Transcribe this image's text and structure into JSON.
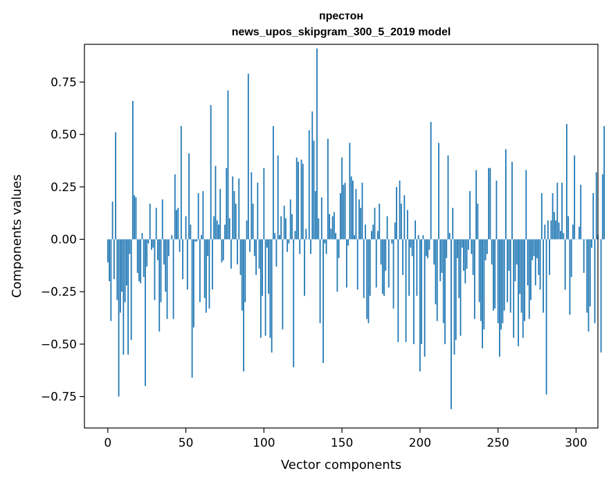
{
  "chart_data": {
    "type": "bar",
    "title": "престон",
    "subtitle": "news_upos_skipgram_300_5_2019 model",
    "xlabel": "Vector components",
    "ylabel": "Components values",
    "xlim": [
      -15,
      314
    ],
    "ylim": [
      -0.9,
      0.93
    ],
    "xticks": [
      0,
      50,
      100,
      150,
      200,
      250,
      300
    ],
    "yticks": [
      -0.75,
      -0.5,
      -0.25,
      0.0,
      0.25,
      0.5,
      0.75
    ],
    "xtick_labels": [
      "0",
      "50",
      "100",
      "150",
      "200",
      "250",
      "300"
    ],
    "ytick_labels": [
      "−0.75",
      "−0.50",
      "−0.25",
      "0.00",
      "0.25",
      "0.50",
      "0.75"
    ],
    "bar_color": "#1f77b4",
    "values": [
      -0.11,
      -0.2,
      -0.39,
      0.18,
      -0.19,
      0.51,
      -0.29,
      -0.75,
      -0.35,
      -0.25,
      -0.55,
      -0.3,
      -0.22,
      -0.55,
      -0.07,
      -0.48,
      0.66,
      0.21,
      0.2,
      -0.16,
      -0.2,
      -0.21,
      0.03,
      -0.18,
      -0.7,
      -0.13,
      -0.02,
      0.17,
      -0.05,
      -0.04,
      -0.29,
      0.15,
      -0.1,
      -0.44,
      -0.3,
      0.19,
      -0.12,
      -0.25,
      -0.38,
      -0.08,
      0.0,
      0.02,
      -0.38,
      0.31,
      0.14,
      0.15,
      -0.06,
      0.54,
      -0.19,
      0.0,
      0.11,
      -0.24,
      0.41,
      0.07,
      -0.66,
      -0.42,
      -0.01,
      -0.01,
      0.22,
      -0.3,
      0.02,
      0.23,
      -0.28,
      -0.35,
      -0.08,
      -0.33,
      0.64,
      -0.24,
      0.11,
      0.35,
      0.09,
      0.07,
      0.24,
      -0.11,
      -0.1,
      0.07,
      0.34,
      0.71,
      0.1,
      -0.14,
      0.3,
      0.23,
      0.17,
      -0.12,
      0.29,
      -0.17,
      -0.34,
      -0.63,
      -0.3,
      0.09,
      0.79,
      -0.06,
      0.32,
      0.17,
      -0.08,
      -0.17,
      0.27,
      -0.14,
      -0.47,
      -0.27,
      0.34,
      -0.46,
      -0.04,
      -0.26,
      -0.47,
      -0.54,
      0.54,
      0.03,
      -0.13,
      0.4,
      0.02,
      0.11,
      -0.43,
      0.16,
      0.1,
      -0.06,
      -0.02,
      0.19,
      0.12,
      -0.61,
      0.04,
      0.39,
      0.37,
      -0.07,
      0.38,
      0.36,
      -0.27,
      0.05,
      0.0,
      0.52,
      -0.07,
      0.61,
      0.47,
      0.23,
      0.91,
      0.1,
      -0.4,
      0.2,
      -0.59,
      -0.02,
      -0.07,
      0.48,
      0.12,
      0.05,
      0.11,
      0.13,
      0.03,
      -0.25,
      -0.09,
      0.22,
      0.39,
      0.26,
      0.27,
      -0.23,
      -0.03,
      0.46,
      0.3,
      0.28,
      0.02,
      0.24,
      -0.24,
      0.19,
      0.15,
      0.27,
      -0.28,
      0.07,
      -0.38,
      -0.4,
      -0.27,
      0.04,
      0.07,
      0.15,
      -0.23,
      0.04,
      0.17,
      -0.12,
      -0.26,
      -0.27,
      -0.15,
      0.11,
      -0.23,
      0.0,
      -0.02,
      -0.33,
      0.08,
      0.25,
      -0.49,
      0.28,
      0.17,
      -0.17,
      0.21,
      -0.49,
      0.14,
      -0.27,
      -0.04,
      -0.08,
      -0.5,
      0.09,
      -0.27,
      0.02,
      -0.63,
      -0.5,
      0.02,
      -0.56,
      -0.08,
      -0.09,
      -0.05,
      0.56,
      0.0,
      -0.12,
      -0.31,
      -0.39,
      0.46,
      -0.2,
      -0.16,
      -0.4,
      -0.5,
      -0.09,
      0.4,
      0.03,
      -0.81,
      0.15,
      -0.55,
      -0.48,
      -0.09,
      -0.28,
      -0.46,
      -0.04,
      -0.15,
      -0.21,
      -0.14,
      -0.05,
      0.23,
      -0.07,
      -0.17,
      -0.38,
      0.33,
      0.17,
      -0.3,
      -0.39,
      -0.52,
      -0.43,
      -0.1,
      -0.07,
      0.34,
      0.34,
      -0.12,
      -0.34,
      -0.33,
      0.28,
      -0.4,
      -0.56,
      -0.43,
      -0.4,
      -0.34,
      0.43,
      -0.3,
      -0.15,
      -0.35,
      0.37,
      -0.47,
      -0.2,
      -0.12,
      -0.51,
      -0.26,
      -0.35,
      -0.47,
      -0.39,
      0.33,
      -0.22,
      -0.38,
      -0.29,
      -0.1,
      -0.08,
      -0.22,
      -0.09,
      -0.17,
      -0.24,
      0.22,
      -0.35,
      0.07,
      -0.74,
      0.09,
      -0.17,
      0.09,
      0.22,
      0.13,
      0.09,
      0.27,
      0.08,
      0.04,
      0.27,
      0.03,
      -0.24,
      0.55,
      0.11,
      -0.36,
      -0.18,
      0.07,
      0.4,
      0.0,
      0.0,
      0.06,
      0.26,
      0.0,
      -0.16,
      0.0,
      -0.35,
      -0.44,
      -0.32,
      -0.04,
      0.22,
      -0.4,
      0.32,
      0.02,
      0.0,
      -0.54,
      0.31,
      0.54
    ]
  }
}
